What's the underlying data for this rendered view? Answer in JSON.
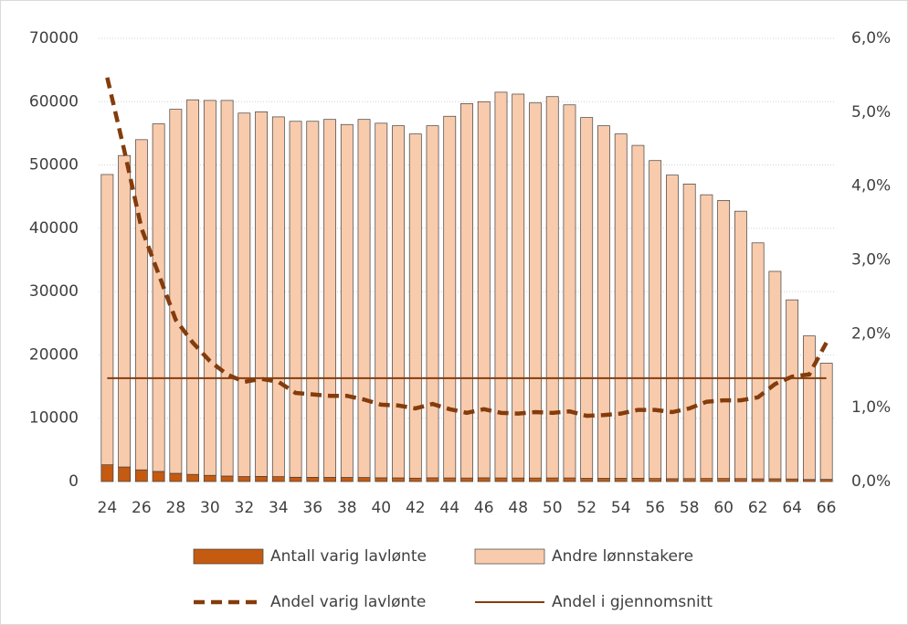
{
  "chart_data": {
    "type": "bar",
    "categories": [
      24,
      null,
      26,
      null,
      28,
      null,
      30,
      null,
      32,
      null,
      34,
      null,
      36,
      null,
      38,
      null,
      40,
      null,
      42,
      null,
      44,
      null,
      46,
      null,
      48,
      null,
      50,
      null,
      52,
      null,
      54,
      null,
      56,
      null,
      58,
      null,
      60,
      null,
      62,
      null,
      64,
      null,
      66
    ],
    "stacked": true,
    "series": [
      {
        "name": "Antall varig lavlønte",
        "type": "bar",
        "color": "#c55a11",
        "values": [
          2650,
          2300,
          1850,
          1600,
          1300,
          1130,
          980,
          870,
          790,
          810,
          780,
          680,
          670,
          660,
          650,
          640,
          590,
          580,
          540,
          590,
          570,
          560,
          590,
          570,
          560,
          560,
          570,
          570,
          510,
          510,
          510,
          520,
          490,
          450,
          470,
          490,
          490,
          470,
          430,
          440,
          410,
          330,
          350
        ]
      },
      {
        "name": "Andre lønnstakere",
        "type": "bar",
        "color": "#f8cbad",
        "values": [
          45850,
          49200,
          52150,
          54900,
          57500,
          59170,
          59220,
          59330,
          57410,
          57590,
          56820,
          56220,
          56230,
          56540,
          55750,
          56560,
          56010,
          55620,
          54360,
          55610,
          57130,
          59140,
          59410,
          60930,
          60640,
          59240,
          60230,
          58930,
          56990,
          55690,
          54390,
          52580,
          50210,
          47950,
          46530,
          44810,
          43910,
          42230,
          37270,
          32760,
          28290,
          22670,
          18350
        ]
      },
      {
        "name": "Andel varig lavlønte",
        "type": "line",
        "axis": "y2",
        "color": "#843c0c",
        "line_style": "dashed",
        "values": [
          5.47,
          4.48,
          3.43,
          2.81,
          2.19,
          1.88,
          1.63,
          1.45,
          1.35,
          1.39,
          1.35,
          1.2,
          1.18,
          1.16,
          1.16,
          1.11,
          1.04,
          1.03,
          0.99,
          1.05,
          0.98,
          0.93,
          0.98,
          0.93,
          0.92,
          0.94,
          0.93,
          0.95,
          0.89,
          0.9,
          0.92,
          0.97,
          0.97,
          0.94,
          0.99,
          1.08,
          1.1,
          1.1,
          1.14,
          1.32,
          1.42,
          1.45,
          1.88
        ]
      },
      {
        "name": "Andel i gjennomsnitt",
        "type": "line",
        "axis": "y2",
        "color": "#843c0c",
        "line_style": "solid",
        "values": [
          1.4,
          1.4,
          1.4,
          1.4,
          1.4,
          1.4,
          1.4,
          1.4,
          1.4,
          1.4,
          1.4,
          1.4,
          1.4,
          1.4,
          1.4,
          1.4,
          1.4,
          1.4,
          1.4,
          1.4,
          1.4,
          1.4,
          1.4,
          1.4,
          1.4,
          1.4,
          1.4,
          1.4,
          1.4,
          1.4,
          1.4,
          1.4,
          1.4,
          1.4,
          1.4,
          1.4,
          1.4,
          1.4,
          1.4,
          1.4,
          1.4,
          1.4,
          1.4
        ]
      }
    ],
    "ylim": [
      0,
      70000
    ],
    "yticks": [
      0,
      10000,
      20000,
      30000,
      40000,
      50000,
      60000,
      70000
    ],
    "y2lim": [
      0,
      6
    ],
    "y2ticks": [
      {
        "value": 0,
        "label": "0,0%"
      },
      {
        "value": 1,
        "label": "1,0%"
      },
      {
        "value": 2,
        "label": "2,0%"
      },
      {
        "value": 3,
        "label": "3,0%"
      },
      {
        "value": 4,
        "label": "4,0%"
      },
      {
        "value": 5,
        "label": "5,0%"
      },
      {
        "value": 6,
        "label": "6,0%"
      }
    ],
    "grid": true,
    "legend": "bottom"
  }
}
